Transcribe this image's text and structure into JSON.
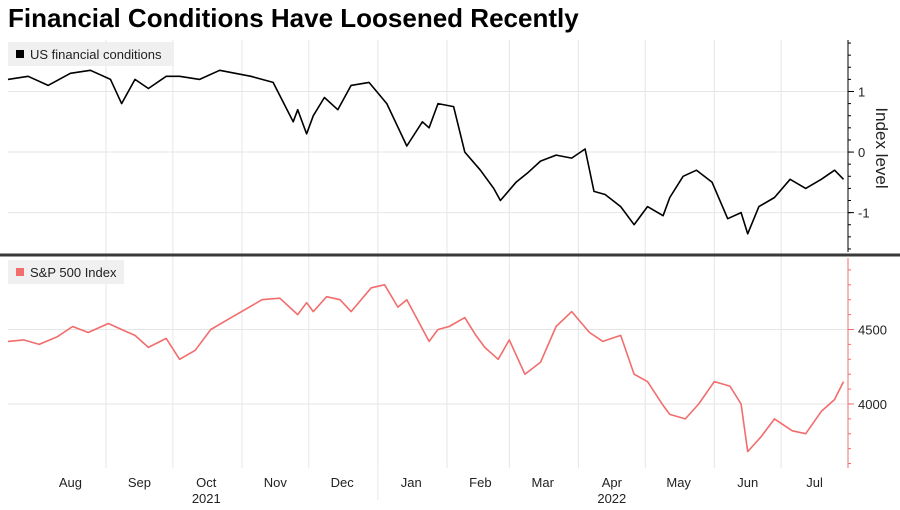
{
  "title": "Financial Conditions Have Loosened Recently",
  "chart_data": [
    {
      "type": "line",
      "legend": "US financial conditions",
      "ylabel": "Index level",
      "color": "#000000",
      "yticks": [
        1,
        0,
        -1
      ],
      "ylim": [
        -1.65,
        1.85
      ],
      "x": [
        "2021-07-19",
        "2021-07-28",
        "2021-08-06",
        "2021-08-16",
        "2021-08-25",
        "2021-09-03",
        "2021-09-08",
        "2021-09-14",
        "2021-09-20",
        "2021-09-28",
        "2021-10-04",
        "2021-10-13",
        "2021-10-22",
        "2021-10-29",
        "2021-11-05",
        "2021-11-15",
        "2021-11-24",
        "2021-11-26",
        "2021-11-30",
        "2021-12-03",
        "2021-12-08",
        "2021-12-14",
        "2021-12-20",
        "2021-12-28",
        "2022-01-05",
        "2022-01-14",
        "2022-01-21",
        "2022-01-24",
        "2022-01-28",
        "2022-02-04",
        "2022-02-09",
        "2022-02-16",
        "2022-02-22",
        "2022-02-25",
        "2022-03-04",
        "2022-03-09",
        "2022-03-15",
        "2022-03-22",
        "2022-03-29",
        "2022-04-04",
        "2022-04-08",
        "2022-04-13",
        "2022-04-20",
        "2022-04-26",
        "2022-05-02",
        "2022-05-09",
        "2022-05-12",
        "2022-05-18",
        "2022-05-24",
        "2022-05-31",
        "2022-06-07",
        "2022-06-13",
        "2022-06-16",
        "2022-06-21",
        "2022-06-28",
        "2022-07-05",
        "2022-07-12",
        "2022-07-19",
        "2022-07-25",
        "2022-07-29"
      ],
      "values": [
        1.2,
        1.25,
        1.1,
        1.3,
        1.35,
        1.2,
        0.8,
        1.2,
        1.05,
        1.25,
        1.25,
        1.2,
        1.35,
        1.3,
        1.25,
        1.15,
        0.5,
        0.7,
        0.3,
        0.6,
        0.9,
        0.7,
        1.1,
        1.15,
        0.8,
        0.1,
        0.5,
        0.4,
        0.8,
        0.75,
        0.0,
        -0.3,
        -0.6,
        -0.8,
        -0.5,
        -0.35,
        -0.15,
        -0.05,
        -0.1,
        0.05,
        -0.65,
        -0.7,
        -0.9,
        -1.2,
        -0.9,
        -1.05,
        -0.75,
        -0.4,
        -0.3,
        -0.5,
        -1.1,
        -1.0,
        -1.35,
        -0.9,
        -0.75,
        -0.45,
        -0.6,
        -0.45,
        -0.3,
        -0.45
      ]
    },
    {
      "type": "line",
      "legend": "S&P 500 Index",
      "color": "#f26d6d",
      "yticks": [
        4500,
        4000
      ],
      "ylim": [
        3570,
        4980
      ],
      "x": [
        "2021-07-19",
        "2021-07-26",
        "2021-08-02",
        "2021-08-10",
        "2021-08-17",
        "2021-08-24",
        "2021-09-02",
        "2021-09-08",
        "2021-09-14",
        "2021-09-20",
        "2021-09-28",
        "2021-10-04",
        "2021-10-11",
        "2021-10-18",
        "2021-10-26",
        "2021-11-02",
        "2021-11-10",
        "2021-11-18",
        "2021-11-26",
        "2021-11-30",
        "2021-12-03",
        "2021-12-09",
        "2021-12-15",
        "2021-12-20",
        "2021-12-29",
        "2022-01-04",
        "2022-01-10",
        "2022-01-14",
        "2022-01-24",
        "2022-01-28",
        "2022-02-02",
        "2022-02-09",
        "2022-02-14",
        "2022-02-18",
        "2022-02-24",
        "2022-03-01",
        "2022-03-08",
        "2022-03-15",
        "2022-03-22",
        "2022-03-29",
        "2022-04-06",
        "2022-04-12",
        "2022-04-20",
        "2022-04-26",
        "2022-05-02",
        "2022-05-09",
        "2022-05-12",
        "2022-05-19",
        "2022-05-25",
        "2022-06-01",
        "2022-06-08",
        "2022-06-13",
        "2022-06-16",
        "2022-06-22",
        "2022-06-28",
        "2022-07-06",
        "2022-07-12",
        "2022-07-19",
        "2022-07-25",
        "2022-07-29"
      ],
      "values": [
        4420,
        4430,
        4400,
        4450,
        4520,
        4480,
        4540,
        4500,
        4460,
        4380,
        4440,
        4300,
        4360,
        4500,
        4570,
        4630,
        4700,
        4710,
        4600,
        4680,
        4620,
        4720,
        4700,
        4620,
        4780,
        4800,
        4650,
        4700,
        4420,
        4500,
        4520,
        4580,
        4460,
        4380,
        4300,
        4430,
        4200,
        4280,
        4520,
        4620,
        4480,
        4420,
        4460,
        4200,
        4150,
        3990,
        3930,
        3900,
        4000,
        4150,
        4120,
        4000,
        3680,
        3780,
        3900,
        3820,
        3800,
        3950,
        4030,
        4150
      ]
    }
  ],
  "x_months": [
    "Aug",
    "Sep",
    "Oct",
    "Nov",
    "Dec",
    "Jan",
    "Feb",
    "Mar",
    "Apr",
    "May",
    "Jun",
    "Jul"
  ],
  "x_years": [
    "2021",
    "2022"
  ]
}
